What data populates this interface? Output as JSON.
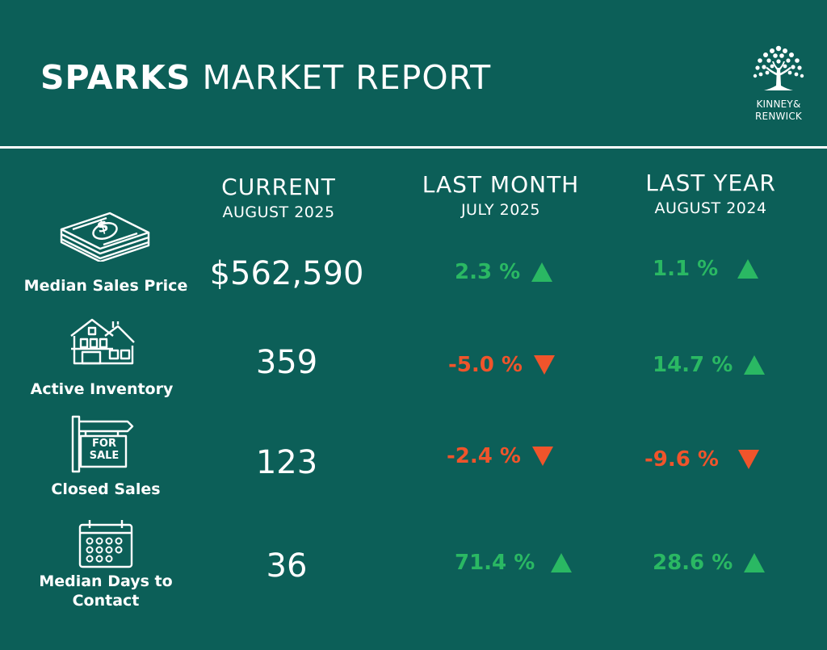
{
  "header": {
    "title_bold": "SPARKS",
    "title_rest": "MARKET REPORT",
    "brand_line1": "KINNEY&",
    "brand_line2": "RENWICK"
  },
  "columns": [
    {
      "title": "CURRENT",
      "subtitle": "AUGUST 2025"
    },
    {
      "title": "LAST MONTH",
      "subtitle": "JULY 2025"
    },
    {
      "title": "LAST YEAR",
      "subtitle": "AUGUST 2024"
    }
  ],
  "rows": [
    {
      "label_line1": "Median Sales Price",
      "label_line2": "",
      "icon": "money-stack-icon",
      "current": "$562,590",
      "last_month": {
        "text": "2.3 %",
        "direction": "up"
      },
      "last_year": {
        "text": "1.1 %",
        "direction": "up"
      }
    },
    {
      "label_line1": "Active Inventory",
      "label_line2": "",
      "icon": "house-icon",
      "current": "359",
      "last_month": {
        "text": "-5.0 %",
        "direction": "down"
      },
      "last_year": {
        "text": "14.7 %",
        "direction": "up"
      }
    },
    {
      "label_line1": "Closed Sales",
      "label_line2": "",
      "icon": "for-sale-sign-icon",
      "current": "123",
      "last_month": {
        "text": "-2.4 %",
        "direction": "down"
      },
      "last_year": {
        "text": "-9.6 %",
        "direction": "down"
      }
    },
    {
      "label_line1": "Median Days to",
      "label_line2": "Contact",
      "icon": "calendar-icon",
      "current": "36",
      "last_month": {
        "text": "71.4 %",
        "direction": "up"
      },
      "last_year": {
        "text": "28.6 %",
        "direction": "up"
      }
    }
  ],
  "icons": {
    "for_sale_line1": "FOR",
    "for_sale_line2": "SALE"
  },
  "colors": {
    "background": "#0c5f58",
    "up": "#2ab863",
    "down": "#f0542b",
    "text": "#ffffff"
  }
}
